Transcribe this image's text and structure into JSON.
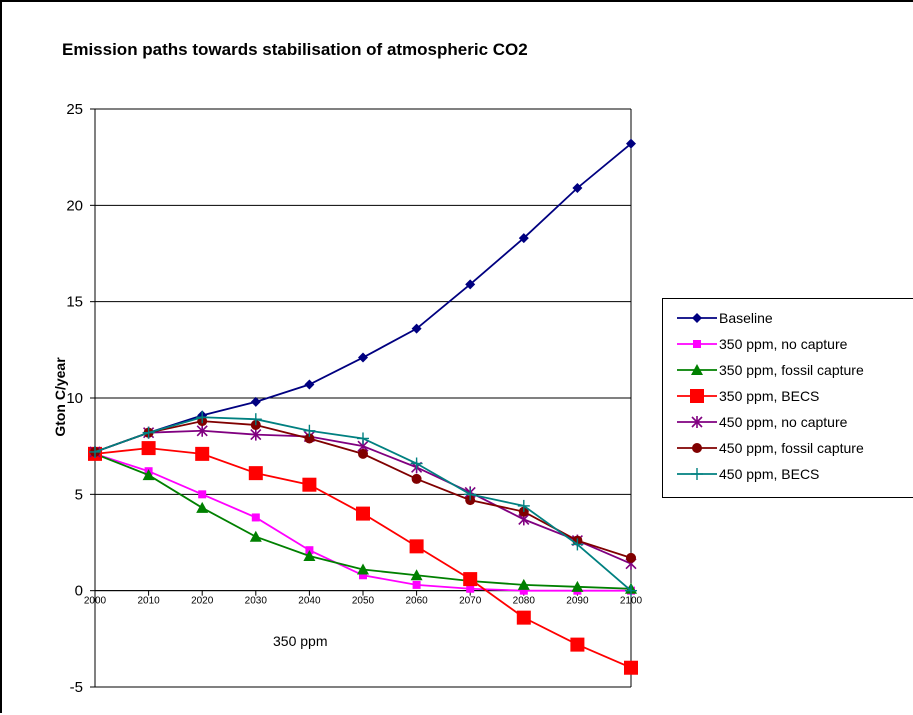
{
  "chart_data": {
    "type": "line",
    "title": "Emission paths towards stabilisation of atmospheric CO2",
    "xlabel": "350 ppm",
    "ylabel": "Gton C/year",
    "ylim": [
      -5,
      25
    ],
    "yticks": [
      -5,
      0,
      5,
      10,
      15,
      20,
      25
    ],
    "x": [
      2000,
      2010,
      2020,
      2030,
      2040,
      2050,
      2060,
      2070,
      2080,
      2090,
      2100
    ],
    "grid": "horizontal",
    "legend_position": "right",
    "series": [
      {
        "name": "Baseline",
        "color": "#000080",
        "marker": "diamond",
        "values": [
          7.2,
          8.2,
          9.1,
          9.8,
          10.7,
          12.1,
          13.6,
          15.9,
          18.3,
          20.9,
          23.2
        ]
      },
      {
        "name": "350 ppm, no capture",
        "color": "#ff00ff",
        "marker": "square-small",
        "values": [
          7.1,
          6.2,
          5.0,
          3.8,
          2.1,
          0.8,
          0.3,
          0.1,
          0.0,
          0.0,
          0.0
        ]
      },
      {
        "name": "350 ppm, fossil capture",
        "color": "#008000",
        "marker": "triangle",
        "values": [
          7.1,
          6.0,
          4.3,
          2.8,
          1.8,
          1.1,
          0.8,
          0.5,
          0.3,
          0.2,
          0.1
        ]
      },
      {
        "name": "350 ppm, BECS",
        "color": "#ff0000",
        "marker": "square",
        "values": [
          7.1,
          7.4,
          7.1,
          6.1,
          5.5,
          4.0,
          2.3,
          0.6,
          -1.4,
          -2.8,
          -4.0
        ]
      },
      {
        "name": "450 ppm, no capture",
        "color": "#800080",
        "marker": "star",
        "values": [
          7.2,
          8.2,
          8.3,
          8.1,
          8.0,
          7.5,
          6.4,
          5.1,
          3.7,
          2.6,
          1.4
        ]
      },
      {
        "name": "450 ppm, fossil capture",
        "color": "#800000",
        "marker": "circle",
        "values": [
          7.2,
          8.2,
          8.8,
          8.6,
          7.9,
          7.1,
          5.8,
          4.7,
          4.1,
          2.6,
          1.7
        ]
      },
      {
        "name": "450 ppm, BECS",
        "color": "#008080",
        "marker": "plus",
        "values": [
          7.2,
          8.2,
          9.0,
          8.9,
          8.3,
          7.9,
          6.6,
          5.0,
          4.4,
          2.4,
          0.0
        ]
      }
    ]
  }
}
